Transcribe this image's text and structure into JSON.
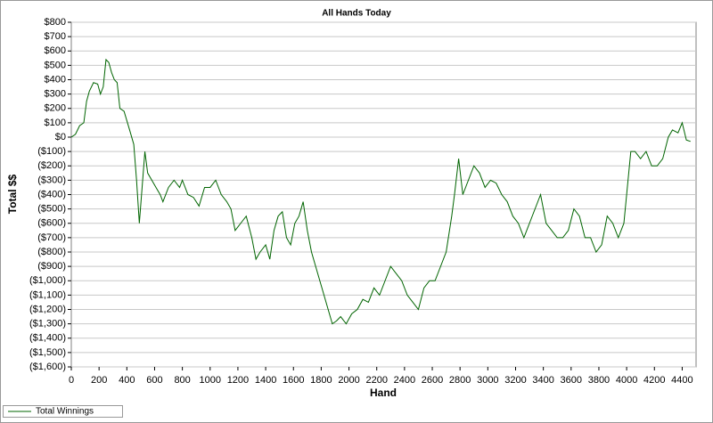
{
  "chart_data": {
    "type": "line",
    "title": "All Hands Today",
    "x_label": "Hand",
    "y_label": "Total $$",
    "xlim": [
      0,
      4500
    ],
    "xticks": [
      0,
      200,
      400,
      600,
      800,
      1000,
      1200,
      1400,
      1600,
      1800,
      2000,
      2200,
      2400,
      2600,
      2800,
      3000,
      3200,
      3400,
      3600,
      3800,
      4000,
      4200,
      4400
    ],
    "ylim": [
      -1600,
      800
    ],
    "yticks": [
      {
        "value": -1600,
        "label": "($1,600)"
      },
      {
        "value": -1500,
        "label": "($1,500)"
      },
      {
        "value": -1400,
        "label": "($1,400)"
      },
      {
        "value": -1300,
        "label": "($1,300)"
      },
      {
        "value": -1200,
        "label": "($1,200)"
      },
      {
        "value": -1100,
        "label": "($1,100)"
      },
      {
        "value": -1000,
        "label": "($1,000)"
      },
      {
        "value": -900,
        "label": "($900)"
      },
      {
        "value": -800,
        "label": "($800)"
      },
      {
        "value": -700,
        "label": "($700)"
      },
      {
        "value": -600,
        "label": "($600)"
      },
      {
        "value": -500,
        "label": "($500)"
      },
      {
        "value": -400,
        "label": "($400)"
      },
      {
        "value": -300,
        "label": "($300)"
      },
      {
        "value": -200,
        "label": "($200)"
      },
      {
        "value": -100,
        "label": "($100)"
      },
      {
        "value": 0,
        "label": "$0"
      },
      {
        "value": 100,
        "label": "$100"
      },
      {
        "value": 200,
        "label": "$200"
      },
      {
        "value": 300,
        "label": "$300"
      },
      {
        "value": 400,
        "label": "$400"
      },
      {
        "value": 500,
        "label": "$500"
      },
      {
        "value": 600,
        "label": "$600"
      },
      {
        "value": 700,
        "label": "$700"
      },
      {
        "value": 800,
        "label": "$800"
      }
    ],
    "grid": true,
    "legend": "bottom-left",
    "x": [
      0,
      30,
      60,
      90,
      110,
      130,
      160,
      190,
      210,
      230,
      250,
      270,
      290,
      310,
      330,
      350,
      380,
      420,
      450,
      470,
      490,
      510,
      530,
      550,
      580,
      610,
      640,
      660,
      700,
      740,
      780,
      800,
      840,
      880,
      920,
      960,
      1000,
      1040,
      1080,
      1120,
      1150,
      1180,
      1220,
      1260,
      1300,
      1330,
      1360,
      1400,
      1430,
      1460,
      1490,
      1520,
      1550,
      1580,
      1610,
      1640,
      1670,
      1700,
      1730,
      1760,
      1790,
      1820,
      1850,
      1880,
      1910,
      1940,
      1980,
      2020,
      2060,
      2100,
      2140,
      2180,
      2220,
      2260,
      2300,
      2340,
      2380,
      2420,
      2460,
      2500,
      2540,
      2580,
      2620,
      2660,
      2700,
      2740,
      2760,
      2790,
      2820,
      2860,
      2900,
      2940,
      2980,
      3020,
      3060,
      3100,
      3140,
      3180,
      3220,
      3260,
      3300,
      3340,
      3380,
      3420,
      3460,
      3500,
      3540,
      3580,
      3620,
      3660,
      3700,
      3740,
      3780,
      3820,
      3860,
      3900,
      3940,
      3980,
      4000,
      4030,
      4060,
      4100,
      4140,
      4180,
      4220,
      4260,
      4300,
      4330,
      4370,
      4400,
      4430,
      4460
    ],
    "series": [
      {
        "name": "Total Winnings",
        "color": "#006400",
        "values": [
          0,
          20,
          80,
          100,
          250,
          320,
          380,
          370,
          300,
          350,
          540,
          520,
          450,
          400,
          380,
          200,
          180,
          50,
          -50,
          -300,
          -600,
          -350,
          -100,
          -250,
          -300,
          -350,
          -400,
          -450,
          -350,
          -300,
          -350,
          -300,
          -400,
          -420,
          -480,
          -350,
          -350,
          -300,
          -400,
          -450,
          -500,
          -650,
          -600,
          -550,
          -700,
          -850,
          -800,
          -750,
          -850,
          -650,
          -550,
          -520,
          -700,
          -750,
          -600,
          -550,
          -450,
          -650,
          -800,
          -900,
          -1000,
          -1100,
          -1200,
          -1300,
          -1280,
          -1250,
          -1300,
          -1230,
          -1200,
          -1130,
          -1150,
          -1050,
          -1100,
          -1000,
          -900,
          -950,
          -1000,
          -1100,
          -1150,
          -1200,
          -1050,
          -1000,
          -1000,
          -900,
          -800,
          -550,
          -400,
          -150,
          -400,
          -300,
          -200,
          -250,
          -350,
          -300,
          -320,
          -400,
          -450,
          -550,
          -600,
          -700,
          -600,
          -500,
          -400,
          -600,
          -650,
          -700,
          -700,
          -650,
          -500,
          -550,
          -700,
          -700,
          -800,
          -750,
          -550,
          -600,
          -700,
          -600,
          -400,
          -100,
          -100,
          -150,
          -100,
          -200,
          -200,
          -150,
          0,
          50,
          30,
          100,
          -20,
          -30
        ]
      }
    ]
  }
}
